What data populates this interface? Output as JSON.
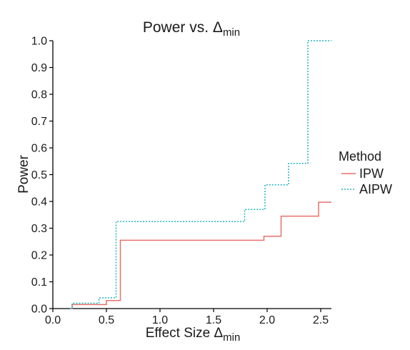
{
  "chart_data": {
    "type": "line",
    "title_main": "Power vs. Δ",
    "title_sub": "min",
    "xlabel_main": "Effect Size Δ",
    "xlabel_sub": "min",
    "ylabel": "Power",
    "xlim": [
      0,
      2.6
    ],
    "ylim": [
      0,
      1.0
    ],
    "x_ticks": [
      0,
      0.5,
      1.0,
      1.5,
      2.0,
      2.5
    ],
    "x_tick_labels": [
      "0.0",
      "0.5",
      "1.0",
      "1.5",
      "2.0",
      "2.5"
    ],
    "y_ticks": [
      0,
      0.1,
      0.2,
      0.3,
      0.4,
      0.5,
      0.6,
      0.7,
      0.8,
      0.9,
      1.0
    ],
    "y_tick_labels": [
      "0.0",
      "0.1",
      "0.2",
      "0.3",
      "0.4",
      "0.5",
      "0.6",
      "0.7",
      "0.8",
      "0.9",
      "1.0"
    ],
    "grid": false,
    "legend": {
      "title": "Method",
      "position": "right"
    },
    "series": [
      {
        "name": "IPW",
        "color": "#e8706a",
        "dash": "solid",
        "step_x": [
          0.17,
          0.18,
          0.5,
          0.6,
          0.63,
          1.97,
          2.13,
          2.48,
          2.6
        ],
        "step_y": [
          0.0,
          0.015,
          0.03,
          0.03,
          0.255,
          0.27,
          0.345,
          0.397,
          0.397
        ]
      },
      {
        "name": "AIPW",
        "color": "#1fb6c1",
        "dash": "dotted",
        "step_x": [
          0.16,
          0.18,
          0.43,
          0.59,
          1.79,
          1.98,
          2.2,
          2.38,
          2.6
        ],
        "step_y": [
          0.0,
          0.02,
          0.04,
          0.325,
          0.37,
          0.462,
          0.542,
          1.0,
          1.0
        ]
      }
    ]
  }
}
